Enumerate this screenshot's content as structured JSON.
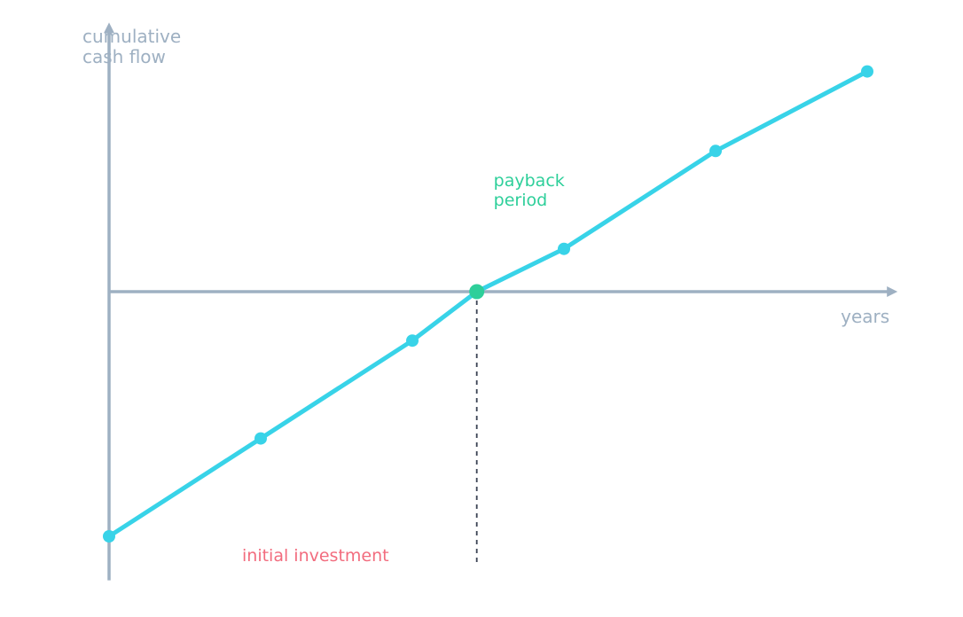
{
  "chart_data": {
    "type": "line",
    "title": "",
    "ylabel": [
      "cumulative",
      "cash flow"
    ],
    "xlabel": "years",
    "x": [
      0,
      1,
      2,
      2.425,
      3,
      4,
      5
    ],
    "y": [
      -100,
      -60,
      -20,
      0,
      17.5,
      57.5,
      90
    ],
    "payback_index": 3,
    "xlim": [
      0,
      5.2
    ],
    "ylim": [
      -118,
      110
    ],
    "grid": false,
    "annotations": {
      "payback_label": [
        "payback",
        "period"
      ],
      "investment_label": "initial investment"
    },
    "colors": {
      "axis": "#9eb0c2",
      "series": "#38d3e8",
      "payback": "#2ecf9a",
      "investment": "#f26c7e",
      "guide": "#3a4252"
    }
  }
}
